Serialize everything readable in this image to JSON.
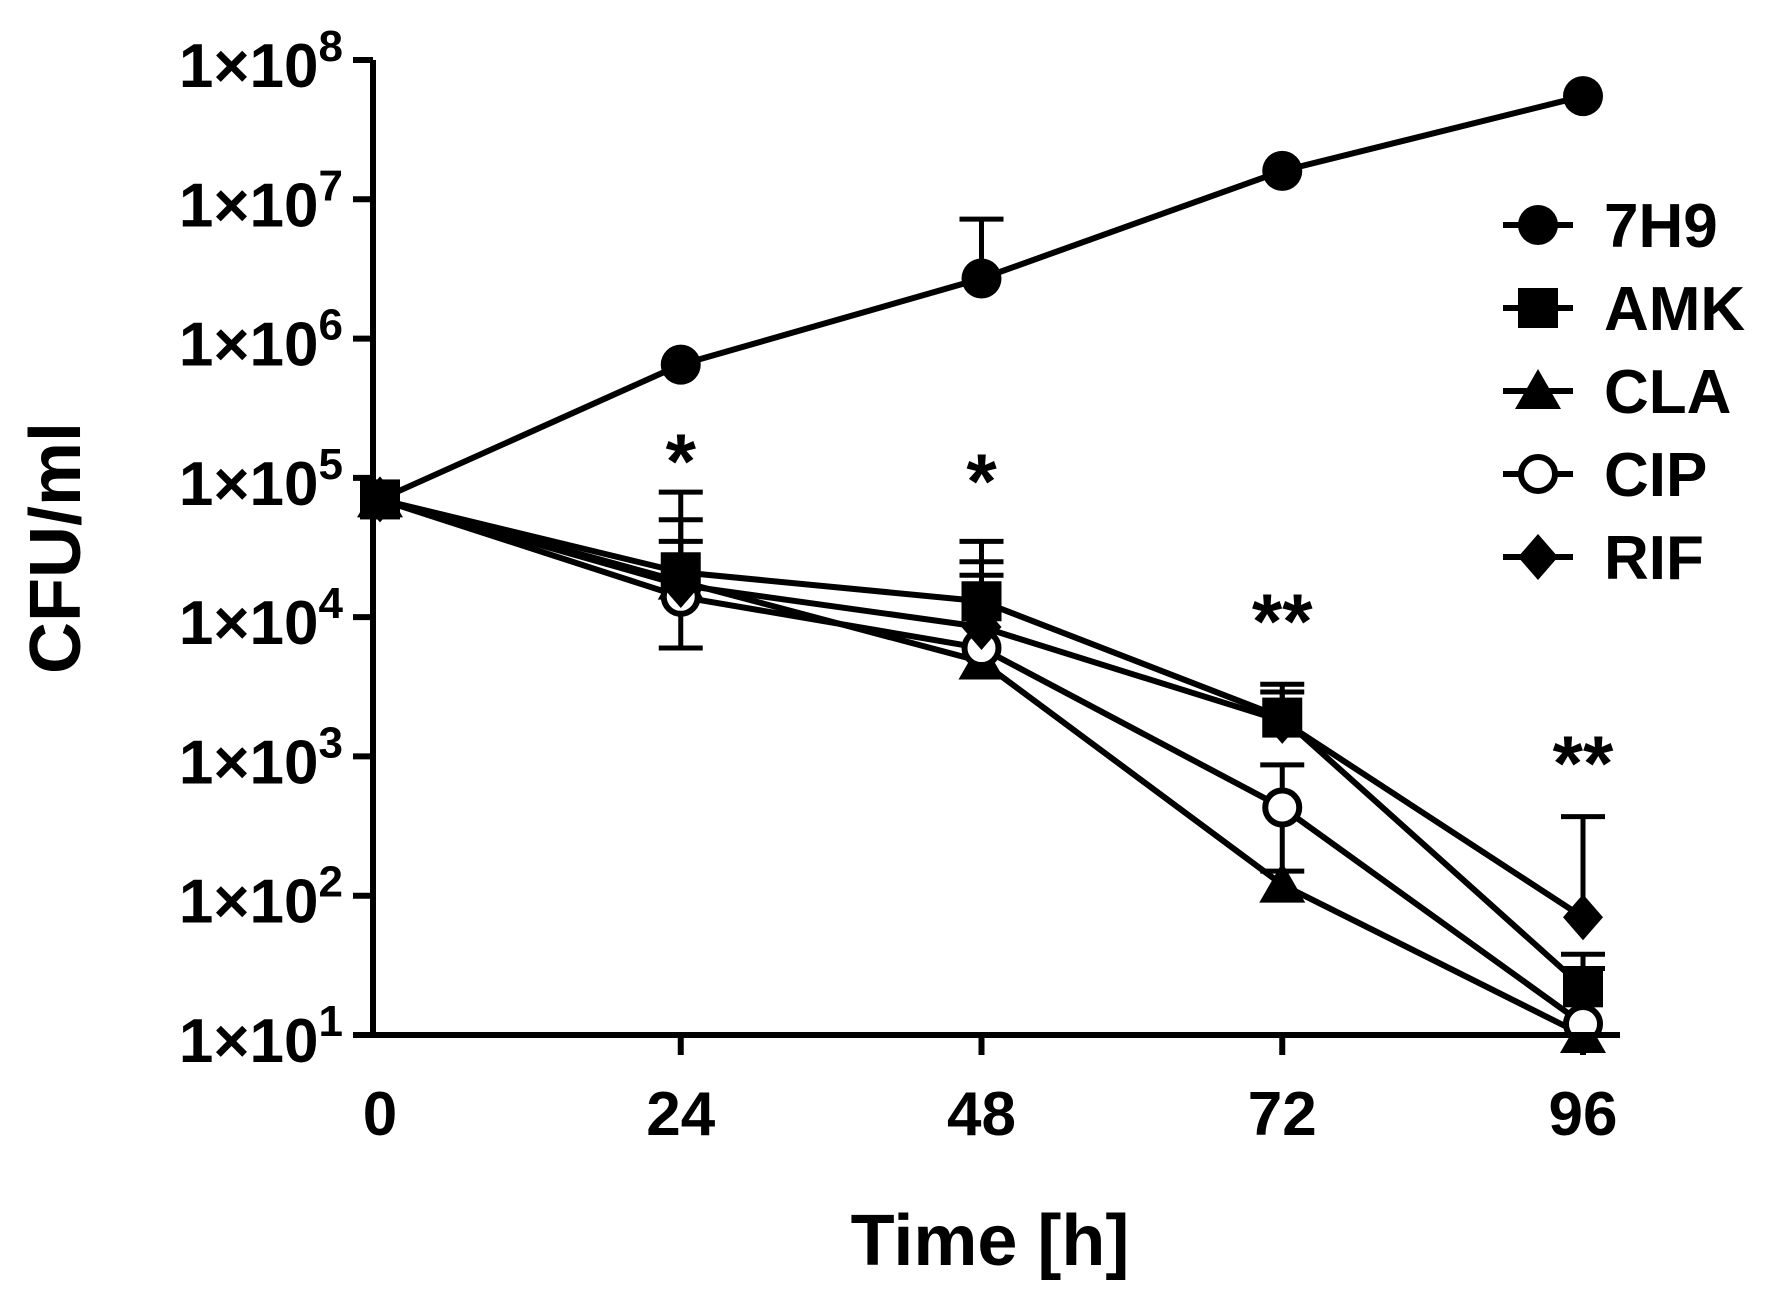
{
  "chart_data": {
    "type": "line",
    "xlabel": "Time [h]",
    "ylabel": "CFU/ml",
    "y_scale": "log",
    "ylim": [
      10,
      100000000
    ],
    "xlim": [
      0,
      96
    ],
    "x": [
      0,
      24,
      48,
      72,
      96
    ],
    "x_tick_labels": [
      "0",
      "24",
      "48",
      "72",
      "96"
    ],
    "y_ticks": [
      {
        "value": 10,
        "mantissa": "1×10",
        "exp": "1"
      },
      {
        "value": 100,
        "mantissa": "1×10",
        "exp": "2"
      },
      {
        "value": 1000,
        "mantissa": "1×10",
        "exp": "3"
      },
      {
        "value": 10000,
        "mantissa": "1×10",
        "exp": "4"
      },
      {
        "value": 100000,
        "mantissa": "1×10",
        "exp": "5"
      },
      {
        "value": 1000000,
        "mantissa": "1×10",
        "exp": "6"
      },
      {
        "value": 10000000,
        "mantissa": "1×10",
        "exp": "7"
      },
      {
        "value": 100000000,
        "mantissa": "1×10",
        "exp": "8"
      }
    ],
    "grid": false,
    "legend_position": "top-right",
    "series": [
      {
        "name": "7H9",
        "marker": "circle-filled",
        "values": [
          70000,
          650000,
          2700000,
          16000000,
          55000000
        ],
        "err_upper": [
          null,
          null,
          7200000,
          null,
          null
        ]
      },
      {
        "name": "AMK",
        "marker": "square",
        "values": [
          70000,
          21000,
          13000,
          1900,
          22
        ],
        "err_upper": [
          null,
          50000,
          35000,
          3300,
          38
        ]
      },
      {
        "name": "CLA",
        "marker": "triangle",
        "values": [
          70000,
          18000,
          4800,
          120,
          10
        ],
        "err_upper": [
          null,
          null,
          null,
          null,
          null
        ]
      },
      {
        "name": "CIP",
        "marker": "circle-open",
        "values": [
          70000,
          14000,
          6000,
          430,
          12
        ],
        "err_upper": [
          null,
          79000,
          25000,
          870,
          30
        ],
        "err_lower": [
          null,
          6000,
          null,
          150,
          null
        ]
      },
      {
        "name": "RIF",
        "marker": "diamond",
        "values": [
          70000,
          17000,
          8500,
          1800,
          70
        ],
        "err_upper": [
          null,
          35000,
          20000,
          2900,
          370
        ]
      }
    ],
    "annotations": [
      {
        "x": 24,
        "text": "*"
      },
      {
        "x": 48,
        "text": "*"
      },
      {
        "x": 72,
        "text": "**"
      },
      {
        "x": 96,
        "text": "**"
      }
    ]
  }
}
